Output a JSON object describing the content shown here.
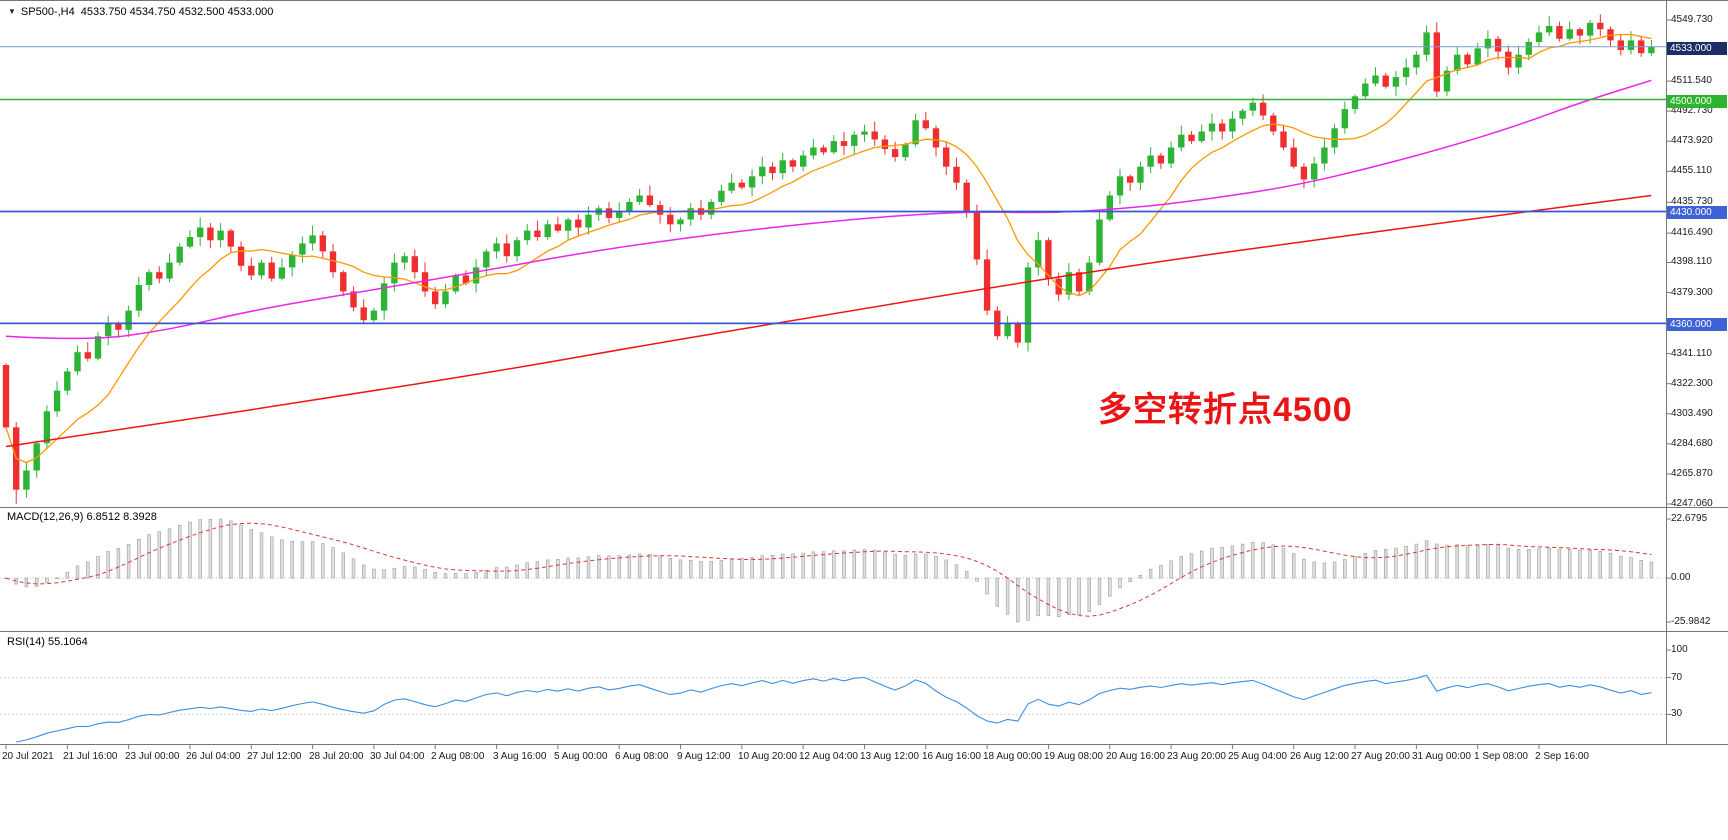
{
  "header": {
    "caret": "▼",
    "symbol": "SP500-,H4",
    "ohlc": "4533.750 4534.750 4532.500 4533.000"
  },
  "chart_data": {
    "type": "candlestick",
    "title": "SP500-,H4",
    "timeframe": "H4",
    "ylim": [
      4247.06,
      4549.73
    ],
    "colors": {
      "up": "#2db336",
      "down": "#ef2f2f",
      "current_line": "#7aa0c8"
    },
    "current_price": 4533.0,
    "hlines": [
      {
        "price": 4500.0,
        "color": "#2db32d",
        "width": 1.6,
        "name": "bull-bear-turning-level"
      },
      {
        "price": 4430.0,
        "color": "#3a57d0",
        "width": 1.8,
        "name": "support-level-4430"
      },
      {
        "price": 4360.0,
        "color": "#3a57d0",
        "width": 1.8,
        "name": "support-level-4360"
      }
    ],
    "price_axis": {
      "ticks": [
        "4549.730",
        "4511.540",
        "4492.730",
        "4473.920",
        "4455.110",
        "4435.730",
        "4416.490",
        "4398.110",
        "4379.300",
        "4341.110",
        "4322.300",
        "4303.490",
        "4284.680",
        "4265.870",
        "4247.060"
      ],
      "badges": [
        {
          "text": "4533.000",
          "bg": "#1b2f66",
          "role": "current-price"
        },
        {
          "text": "4500.000",
          "bg": "#2db32d",
          "role": "level"
        },
        {
          "text": "4430.000",
          "bg": "#3f63d6",
          "role": "level"
        },
        {
          "text": "4360.000",
          "bg": "#3f63d6",
          "role": "level"
        }
      ]
    },
    "candlesticks": {
      "first_open": 4334,
      "closes": [
        4295,
        4256,
        4268,
        4285,
        4305,
        4318,
        4330,
        4342,
        4338,
        4352,
        4360,
        4356,
        4368,
        4384,
        4392,
        4388,
        4398,
        4408,
        4414,
        4420,
        4412,
        4418,
        4408,
        4396,
        4390,
        4398,
        4388,
        4395,
        4403,
        4410,
        4415,
        4405,
        4392,
        4380,
        4370,
        4362,
        4368,
        4385,
        4398,
        4402,
        4392,
        4380,
        4372,
        4380,
        4390,
        4385,
        4395,
        4405,
        4410,
        4402,
        4412,
        4418,
        4414,
        4422,
        4418,
        4425,
        4420,
        4428,
        4432,
        4426,
        4430,
        4436,
        4440,
        4434,
        4428,
        4422,
        4425,
        4432,
        4428,
        4436,
        4443,
        4448,
        4445,
        4452,
        4458,
        4454,
        4462,
        4458,
        4465,
        4470,
        4467,
        4474,
        4471,
        4478,
        4480,
        4475,
        4469,
        4464,
        4472,
        4487,
        4482,
        4470,
        4458,
        4448,
        4430,
        4400,
        4368,
        4352,
        4360,
        4348,
        4395,
        4412,
        4388,
        4378,
        4392,
        4380,
        4398,
        4425,
        4440,
        4452,
        4448,
        4458,
        4465,
        4460,
        4470,
        4478,
        4474,
        4480,
        4485,
        4480,
        4488,
        4493,
        4498,
        4490,
        4480,
        4470,
        4458,
        4450,
        4460,
        4470,
        4482,
        4494,
        4502,
        4510,
        4515,
        4508,
        4514,
        4520,
        4528,
        4542,
        4505,
        4518,
        4528,
        4522,
        4532,
        4538,
        4530,
        4520,
        4528,
        4536,
        4542,
        4546,
        4538,
        4544,
        4540,
        4548,
        4544,
        4537,
        4531,
        4537,
        4529,
        4533
      ],
      "overrides": {
        "1": {
          "low": 4247.1
        },
        "89": {
          "high": 4491.0
        },
        "99": {
          "low": 4345.0
        },
        "155": {
          "high": 4549.7
        }
      }
    },
    "moving_averages": {
      "fast": {
        "period": 10,
        "color": "#ff9800"
      },
      "mid": {
        "color": "#e926e9",
        "anchors": [
          [
            0,
            4352
          ],
          [
            8,
            4349
          ],
          [
            16,
            4356
          ],
          [
            24,
            4368
          ],
          [
            34,
            4379
          ],
          [
            46,
            4392
          ],
          [
            58,
            4406
          ],
          [
            72,
            4418
          ],
          [
            84,
            4426
          ],
          [
            94,
            4430
          ],
          [
            102,
            4429
          ],
          [
            110,
            4432
          ],
          [
            118,
            4438
          ],
          [
            126,
            4446
          ],
          [
            134,
            4458
          ],
          [
            142,
            4472
          ],
          [
            148,
            4484
          ],
          [
            154,
            4498
          ],
          [
            161,
            4512
          ]
        ]
      },
      "slow": {
        "color": "#f01414",
        "anchors": [
          [
            0,
            4283
          ],
          [
            16,
            4298
          ],
          [
            32,
            4314
          ],
          [
            48,
            4330
          ],
          [
            64,
            4348
          ],
          [
            80,
            4365
          ],
          [
            96,
            4382
          ],
          [
            112,
            4398
          ],
          [
            128,
            4412
          ],
          [
            144,
            4426
          ],
          [
            161,
            4440
          ]
        ]
      }
    },
    "macd": {
      "label": "MACD(12,26,9) 6.8512 8.3928",
      "value": 6.8512,
      "signal_value": 8.3928,
      "fast": 12,
      "slow": 26,
      "signal": 9,
      "axis": [
        "22.6795",
        "0.00",
        "-25.9842"
      ],
      "histogram_fill": "#e0e0e0",
      "histogram_stroke": "#9c9c9c",
      "signal_color": "#e03535"
    },
    "rsi": {
      "label": "RSI(14) 55.1064",
      "value": 55.1064,
      "period": 14,
      "axis": [
        "100",
        "70",
        "30"
      ],
      "levels": [
        70,
        30
      ],
      "color": "#3e8ede"
    },
    "x_labels": [
      "20 Jul 2021",
      "21 Jul 16:00",
      "23 Jul 00:00",
      "26 Jul 04:00",
      "27 Jul 12:00",
      "28 Jul 20:00",
      "30 Jul 04:00",
      "2 Aug 08:00",
      "3 Aug 16:00",
      "5 Aug 00:00",
      "6 Aug 08:00",
      "9 Aug 12:00",
      "10 Aug 20:00",
      "12 Aug 04:00",
      "13 Aug 12:00",
      "16 Aug 16:00",
      "18 Aug 00:00",
      "19 Aug 08:00",
      "20 Aug 16:00",
      "23 Aug 20:00",
      "25 Aug 04:00",
      "26 Aug 12:00",
      "27 Aug 20:00",
      "31 Aug 00:00",
      "1 Sep 08:00",
      "2 Sep 16:00"
    ],
    "annotation": {
      "text": "多空转折点4500",
      "color": "#ea1515"
    }
  }
}
